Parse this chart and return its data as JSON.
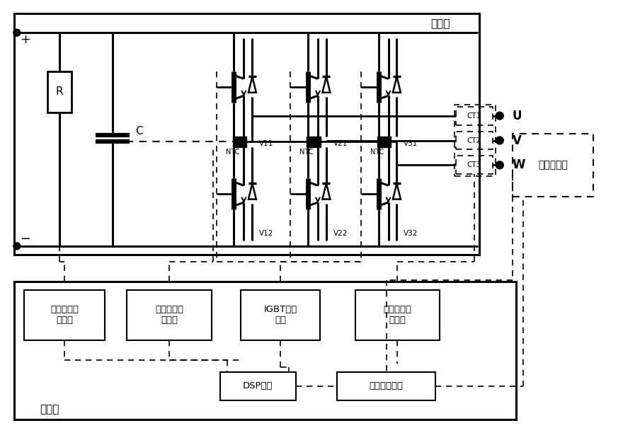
{
  "main_circuit_label": "主电路",
  "circuit_board_label": "电路板",
  "transformer_label": "旋转变压器",
  "plus_label": "+",
  "minus_label": "−",
  "R_label": "R",
  "C_label": "C",
  "NTC_label": "NTC",
  "V_upper": [
    "V11",
    "V21",
    "V31"
  ],
  "V_lower": [
    "V12",
    "V22",
    "V32"
  ],
  "CT_labels": [
    "CT1",
    "CT2",
    "CT3"
  ],
  "UVW_labels": [
    "U",
    "V",
    "W"
  ],
  "box1_label": "直流高压检\n测电路",
  "box2_label": "模块温度检\n测电路",
  "box3_label": "IGBT驱动\n电路",
  "box4_label": "三相电流检\n测电路",
  "dsp_label": "DSP芯片",
  "speed_label": "速度检测电路",
  "bg_color": "white"
}
